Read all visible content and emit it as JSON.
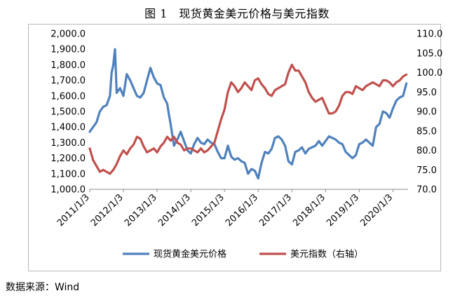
{
  "title": "图 1　现货黄金美元价格与美元指数",
  "source": "数据来源：Wind",
  "chart_data": {
    "type": "line",
    "title": "现货黄金美元价格与美元指数",
    "x_categories": [
      "2011/1/3",
      "2012/1/3",
      "2013/1/3",
      "2014/1/3",
      "2015/1/3",
      "2016/1/3",
      "2017/1/3",
      "2018/1/3",
      "2019/1/3",
      "2020/1/3"
    ],
    "x_range": [
      2011.0,
      2020.45
    ],
    "y_left": {
      "min": 1000,
      "max": 2000,
      "ticks": [
        "1,000.0",
        "1,100.0",
        "1,200.0",
        "1,300.0",
        "1,400.0",
        "1,500.0",
        "1,600.0",
        "1,700.0",
        "1,800.0",
        "1,900.0",
        "2,000.0"
      ]
    },
    "y_right": {
      "min": 70,
      "max": 110,
      "ticks": [
        "70.0",
        "75.0",
        "80.0",
        "85.0",
        "90.0",
        "95.0",
        "100.0",
        "105.0",
        "110.0"
      ]
    },
    "legend_position": "bottom",
    "series": [
      {
        "name": "现货黄金美元价格",
        "axis": "left",
        "color": "#4f81bd",
        "x": [
          2011.0,
          2011.1,
          2011.2,
          2011.3,
          2011.4,
          2011.5,
          2011.6,
          2011.65,
          2011.7,
          2011.75,
          2011.8,
          2011.9,
          2012.0,
          2012.1,
          2012.2,
          2012.3,
          2012.4,
          2012.5,
          2012.6,
          2012.7,
          2012.8,
          2012.9,
          2013.0,
          2013.1,
          2013.2,
          2013.3,
          2013.35,
          2013.4,
          2013.5,
          2013.6,
          2013.7,
          2013.8,
          2013.9,
          2014.0,
          2014.1,
          2014.2,
          2014.3,
          2014.4,
          2014.5,
          2014.6,
          2014.7,
          2014.8,
          2014.9,
          2015.0,
          2015.1,
          2015.2,
          2015.3,
          2015.4,
          2015.5,
          2015.6,
          2015.7,
          2015.8,
          2015.9,
          2016.0,
          2016.1,
          2016.2,
          2016.3,
          2016.4,
          2016.5,
          2016.6,
          2016.7,
          2016.8,
          2016.9,
          2017.0,
          2017.1,
          2017.2,
          2017.3,
          2017.4,
          2017.5,
          2017.6,
          2017.7,
          2017.8,
          2017.9,
          2018.0,
          2018.1,
          2018.2,
          2018.3,
          2018.4,
          2018.5,
          2018.6,
          2018.7,
          2018.8,
          2018.9,
          2019.0,
          2019.1,
          2019.2,
          2019.3,
          2019.4,
          2019.5,
          2019.6,
          2019.7,
          2019.8,
          2019.9,
          2020.0,
          2020.1,
          2020.2,
          2020.3,
          2020.4
        ],
        "values": [
          1370,
          1400,
          1430,
          1500,
          1530,
          1540,
          1600,
          1750,
          1800,
          1900,
          1620,
          1650,
          1600,
          1740,
          1700,
          1650,
          1600,
          1590,
          1620,
          1700,
          1780,
          1720,
          1680,
          1670,
          1590,
          1550,
          1480,
          1420,
          1280,
          1320,
          1370,
          1310,
          1250,
          1230,
          1290,
          1330,
          1300,
          1290,
          1320,
          1300,
          1290,
          1240,
          1200,
          1200,
          1280,
          1210,
          1190,
          1200,
          1180,
          1170,
          1100,
          1130,
          1120,
          1070,
          1170,
          1240,
          1230,
          1260,
          1330,
          1340,
          1320,
          1280,
          1180,
          1160,
          1240,
          1250,
          1270,
          1230,
          1260,
          1270,
          1280,
          1310,
          1280,
          1310,
          1340,
          1330,
          1320,
          1300,
          1290,
          1240,
          1220,
          1200,
          1220,
          1290,
          1300,
          1320,
          1300,
          1280,
          1400,
          1420,
          1500,
          1490,
          1460,
          1520,
          1570,
          1590,
          1600,
          1680
        ]
      },
      {
        "name": "美元指数（右轴）",
        "axis": "right",
        "color": "#c0504d",
        "x": [
          2011.0,
          2011.1,
          2011.2,
          2011.3,
          2011.4,
          2011.5,
          2011.6,
          2011.7,
          2011.8,
          2011.9,
          2012.0,
          2012.1,
          2012.2,
          2012.3,
          2012.4,
          2012.5,
          2012.6,
          2012.7,
          2012.8,
          2012.9,
          2013.0,
          2013.1,
          2013.2,
          2013.3,
          2013.4,
          2013.5,
          2013.6,
          2013.7,
          2013.8,
          2013.9,
          2014.0,
          2014.1,
          2014.2,
          2014.3,
          2014.4,
          2014.5,
          2014.6,
          2014.7,
          2014.8,
          2014.9,
          2015.0,
          2015.1,
          2015.2,
          2015.3,
          2015.4,
          2015.5,
          2015.6,
          2015.7,
          2015.8,
          2015.9,
          2016.0,
          2016.1,
          2016.2,
          2016.3,
          2016.4,
          2016.5,
          2016.6,
          2016.7,
          2016.8,
          2016.9,
          2017.0,
          2017.1,
          2017.2,
          2017.3,
          2017.4,
          2017.5,
          2017.6,
          2017.7,
          2017.8,
          2017.9,
          2018.0,
          2018.1,
          2018.2,
          2018.3,
          2018.4,
          2018.5,
          2018.6,
          2018.7,
          2018.8,
          2018.9,
          2019.0,
          2019.1,
          2019.2,
          2019.3,
          2019.4,
          2019.5,
          2019.6,
          2019.7,
          2019.8,
          2019.9,
          2020.0,
          2020.1,
          2020.2,
          2020.3,
          2020.4
        ],
        "values": [
          80.5,
          77.5,
          76.0,
          74.5,
          75.0,
          74.5,
          74.0,
          75.0,
          76.5,
          78.5,
          80.0,
          79.0,
          80.5,
          81.5,
          83.5,
          83.0,
          81.0,
          79.5,
          80.0,
          80.5,
          79.5,
          81.0,
          82.0,
          83.5,
          82.5,
          83.5,
          82.0,
          81.5,
          80.0,
          80.5,
          80.5,
          80.0,
          79.5,
          80.5,
          79.5,
          80.0,
          81.0,
          82.0,
          85.0,
          88.0,
          90.5,
          95.0,
          97.5,
          96.5,
          95.0,
          96.0,
          97.5,
          96.5,
          95.5,
          98.0,
          98.5,
          97.0,
          96.0,
          94.5,
          94.0,
          95.5,
          96.0,
          96.5,
          97.0,
          100.0,
          102.0,
          100.5,
          100.5,
          99.0,
          97.5,
          95.0,
          93.5,
          92.5,
          93.0,
          93.5,
          91.5,
          89.5,
          89.5,
          90.0,
          91.5,
          94.0,
          95.0,
          95.0,
          94.5,
          96.5,
          96.0,
          95.5,
          96.5,
          97.0,
          97.5,
          97.0,
          96.5,
          98.0,
          98.0,
          97.5,
          96.5,
          97.5,
          98.0,
          99.0,
          99.5
        ]
      }
    ]
  }
}
